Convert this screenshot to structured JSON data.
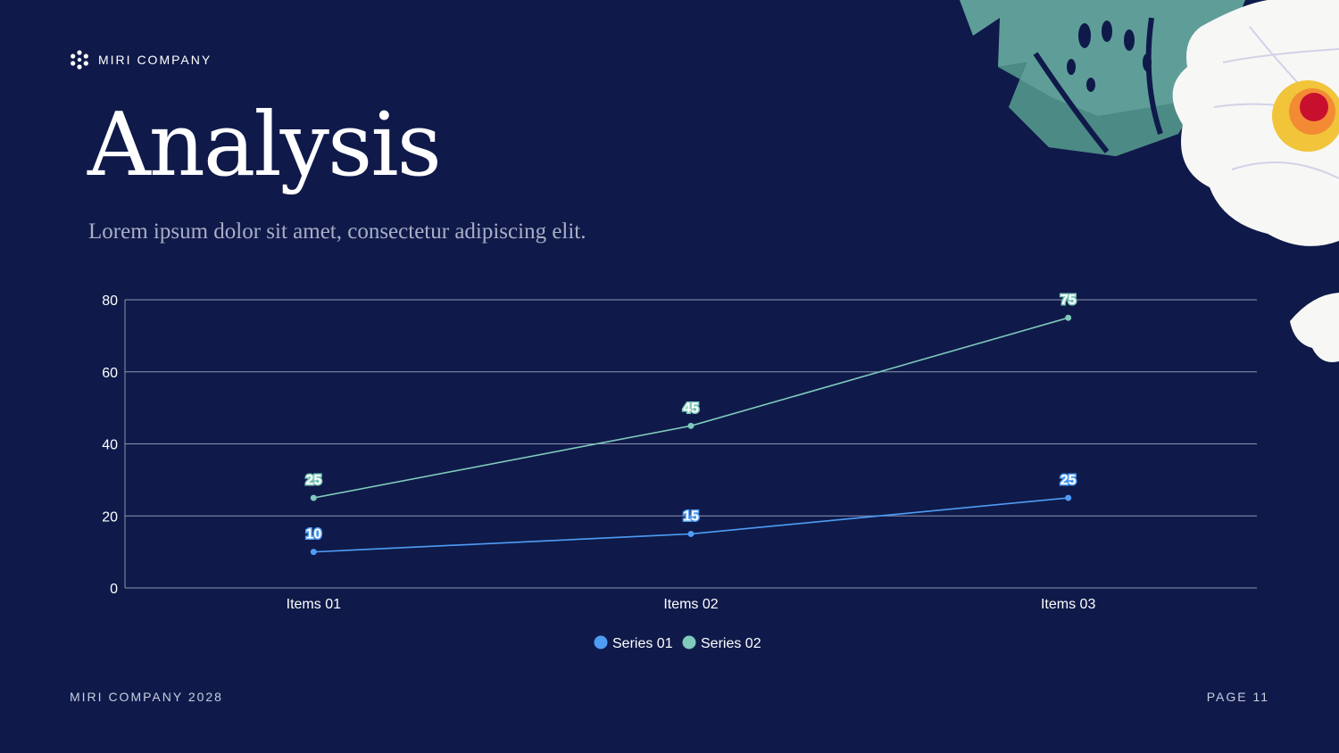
{
  "brand": {
    "name": "MIRI COMPANY",
    "icon": "asterisk-icon"
  },
  "title": "Analysis",
  "subtitle": "Lorem ipsum dolor sit amet, consectetur adipiscing elit.",
  "footer": {
    "left": "MIRI COMPANY 2028",
    "right": "PAGE 11"
  },
  "colors": {
    "background": "#0f1a4a",
    "series1": "#4f9cf5",
    "series2": "#7fcabb",
    "grid": "#8e95b3"
  },
  "chart_data": {
    "type": "line",
    "title": "",
    "xlabel": "",
    "ylabel": "",
    "categories": [
      "Items 01",
      "Items 02",
      "Items 03"
    ],
    "series": [
      {
        "name": "Series 01",
        "values": [
          10,
          15,
          25
        ],
        "color": "#4f9cf5"
      },
      {
        "name": "Series 02",
        "values": [
          25,
          45,
          75
        ],
        "color": "#7fcabb"
      }
    ],
    "ylim": [
      0,
      80
    ],
    "yticks": [
      0,
      20,
      40,
      60,
      80
    ],
    "grid": true,
    "legend": "bottom-center"
  }
}
